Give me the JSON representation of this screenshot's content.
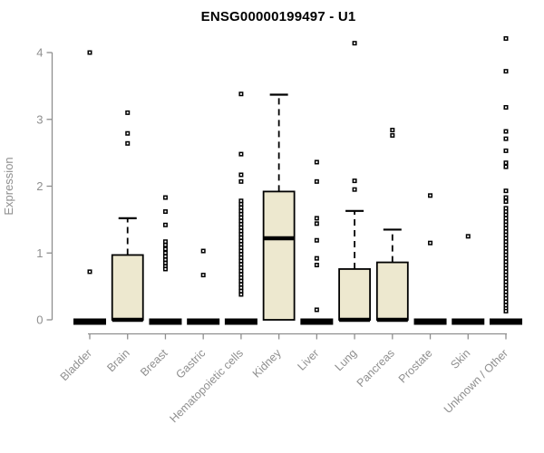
{
  "chart_data": {
    "type": "boxplot",
    "title": "ENSG00000199497 - U1",
    "ylabel": "Expression",
    "xlabel": "",
    "yticks": [
      0,
      1,
      2,
      3,
      4
    ],
    "ylim": [
      0,
      4.25
    ],
    "grid": false,
    "legend": "none",
    "colors": {
      "box_fill": "#EDE8CF",
      "box_stroke": "#000000",
      "axis_color": "#8f8f8f",
      "label_color": "#8f8f8f",
      "title_color": "#000000",
      "outlier_color": "#000000"
    },
    "categories": [
      "Bladder",
      "Brain",
      "Breast",
      "Gastric",
      "Hematopoietic cells",
      "Kidney",
      "Liver",
      "Lung",
      "Pancreas",
      "Prostate",
      "Skin",
      "Unknown / Other"
    ],
    "boxes": [
      {
        "category": "Bladder",
        "q1": 0,
        "median": 0,
        "q3": 0,
        "whisker_low": 0,
        "whisker_high": 0,
        "outliers": [
          4.0,
          0.72
        ]
      },
      {
        "category": "Brain",
        "q1": 0,
        "median": 0,
        "q3": 0.97,
        "whisker_low": 0,
        "whisker_high": 1.52,
        "outliers": [
          3.1,
          2.79,
          2.64
        ]
      },
      {
        "category": "Breast",
        "q1": 0,
        "median": 0,
        "q3": 0,
        "whisker_low": 0,
        "whisker_high": 0,
        "outliers": [
          1.83,
          1.62,
          1.42,
          1.17,
          1.12,
          1.06,
          1.0,
          0.95,
          0.9,
          0.85,
          0.8,
          0.76
        ]
      },
      {
        "category": "Gastric",
        "q1": 0,
        "median": 0,
        "q3": 0,
        "whisker_low": 0,
        "whisker_high": 0,
        "outliers": [
          1.03,
          0.67
        ]
      },
      {
        "category": "Hematopoietic cells",
        "q1": 0,
        "median": 0,
        "q3": 0,
        "whisker_low": 0,
        "whisker_high": 0,
        "outliers": [
          3.38,
          2.48,
          2.17,
          2.07,
          1.78,
          1.73,
          1.68,
          1.63,
          1.58,
          1.53,
          1.48,
          1.43,
          1.38,
          1.33,
          1.28,
          1.23,
          1.18,
          1.13,
          1.08,
          1.03,
          0.98,
          0.93,
          0.88,
          0.83,
          0.78,
          0.73,
          0.68,
          0.63,
          0.58,
          0.53,
          0.48,
          0.43,
          0.38
        ]
      },
      {
        "category": "Kidney",
        "q1": 0,
        "median": 1.22,
        "q3": 1.92,
        "whisker_low": 0,
        "whisker_high": 3.37,
        "outliers": []
      },
      {
        "category": "Liver",
        "q1": 0,
        "median": 0,
        "q3": 0,
        "whisker_low": 0,
        "whisker_high": 0,
        "outliers": [
          2.36,
          2.07,
          1.52,
          1.44,
          1.19,
          0.92,
          0.82,
          0.15
        ]
      },
      {
        "category": "Lung",
        "q1": 0,
        "median": 0,
        "q3": 0.76,
        "whisker_low": 0,
        "whisker_high": 1.63,
        "outliers": [
          4.14,
          2.08,
          1.95
        ]
      },
      {
        "category": "Pancreas",
        "q1": 0,
        "median": 0,
        "q3": 0.86,
        "whisker_low": 0,
        "whisker_high": 1.35,
        "outliers": [
          2.84,
          2.76
        ]
      },
      {
        "category": "Prostate",
        "q1": 0,
        "median": 0,
        "q3": 0,
        "whisker_low": 0,
        "whisker_high": 0,
        "outliers": [
          1.86,
          1.15
        ]
      },
      {
        "category": "Skin",
        "q1": 0,
        "median": 0,
        "q3": 0,
        "whisker_low": 0,
        "whisker_high": 0,
        "outliers": [
          1.25
        ]
      },
      {
        "category": "Unknown / Other",
        "q1": 0,
        "median": 0,
        "q3": 0,
        "whisker_low": 0,
        "whisker_high": 0,
        "outliers": [
          4.21,
          3.72,
          3.18,
          2.82,
          2.71,
          2.53,
          2.35,
          2.29,
          1.93,
          1.83,
          1.77,
          1.67,
          1.62,
          1.57,
          1.52,
          1.47,
          1.42,
          1.37,
          1.32,
          1.27,
          1.22,
          1.17,
          1.12,
          1.07,
          1.02,
          0.97,
          0.92,
          0.87,
          0.82,
          0.77,
          0.72,
          0.67,
          0.62,
          0.57,
          0.52,
          0.47,
          0.42,
          0.37,
          0.32,
          0.27,
          0.22,
          0.17,
          0.13
        ]
      }
    ]
  }
}
